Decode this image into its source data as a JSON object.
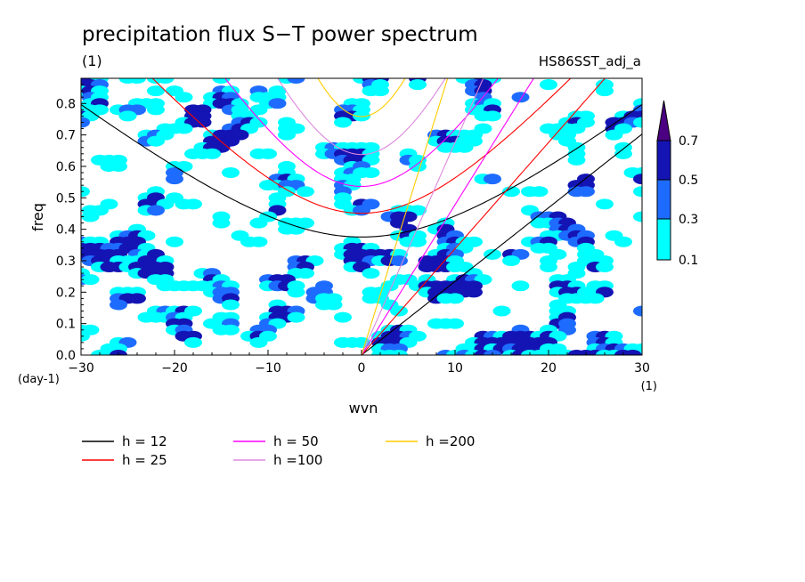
{
  "title": "precipitation flux S−T power spectrum",
  "subtitle_left": "(1)",
  "subtitle_right": "HS86SST_adj_a",
  "chart_data": {
    "type": "heatmap",
    "title": "precipitation flux S−T power spectrum",
    "xlabel": "wvn",
    "ylabel": "freq",
    "x_unit_label": "(1)",
    "y_unit_label": "(day-1)",
    "xlim": [
      -30,
      30
    ],
    "ylim": [
      0,
      0.88
    ],
    "x_ticks": [
      -30,
      -20,
      -10,
      0,
      10,
      20,
      30
    ],
    "y_ticks": [
      0.0,
      0.1,
      0.2,
      0.3,
      0.4,
      0.5,
      0.6,
      0.7,
      0.8
    ],
    "colorbar": {
      "levels": [
        0.1,
        0.3,
        0.5,
        0.7
      ],
      "labels": [
        "0.1",
        "0.3",
        "0.5",
        "0.7"
      ],
      "colors": [
        "#00ffff",
        "#1e6cff",
        "#1414b4",
        "#4b0082"
      ]
    },
    "dispersion_curves": [
      {
        "name": "h = 12",
        "h": 12,
        "color": "#000000"
      },
      {
        "name": "h = 25",
        "h": 25,
        "color": "#ff0000"
      },
      {
        "name": "h = 50",
        "h": 50,
        "color": "#ff00ff"
      },
      {
        "name": "h =100",
        "h": 100,
        "color": "#dd88dd"
      },
      {
        "name": "h =200",
        "h": 200,
        "color": "#ffcc00"
      }
    ],
    "grid": false,
    "legend_position": "bottom-left"
  }
}
